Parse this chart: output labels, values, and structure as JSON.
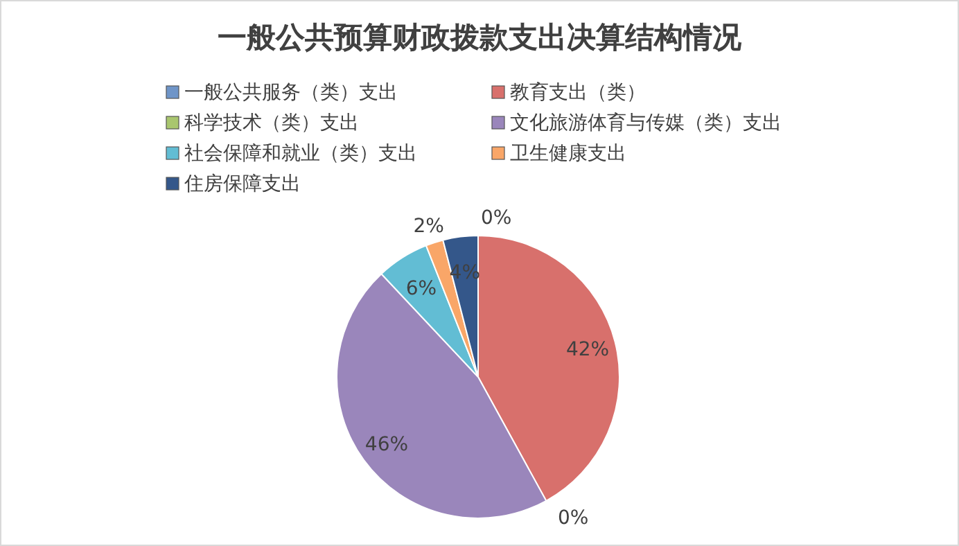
{
  "chart_data": {
    "type": "pie",
    "title": "一般公共预算财政拨款支出决算结构情况",
    "categories": [
      "一般公共服务（类）支出",
      "教育支出（类）",
      "科学技术（类）支出",
      "文化旅游体育与传媒（类）支出",
      "社会保障和就业（类）支出",
      "卫生健康支出",
      "住房保障支出"
    ],
    "values": [
      0,
      42,
      0,
      46,
      6,
      2,
      4
    ],
    "colors": [
      "#6f95c8",
      "#d8706c",
      "#a9c66f",
      "#9a86bb",
      "#62bdd4",
      "#f9a668",
      "#34578a"
    ],
    "value_labels": [
      "0%",
      "42%",
      "0%",
      "46%",
      "6%",
      "2%",
      "4%"
    ],
    "legend": "top"
  }
}
